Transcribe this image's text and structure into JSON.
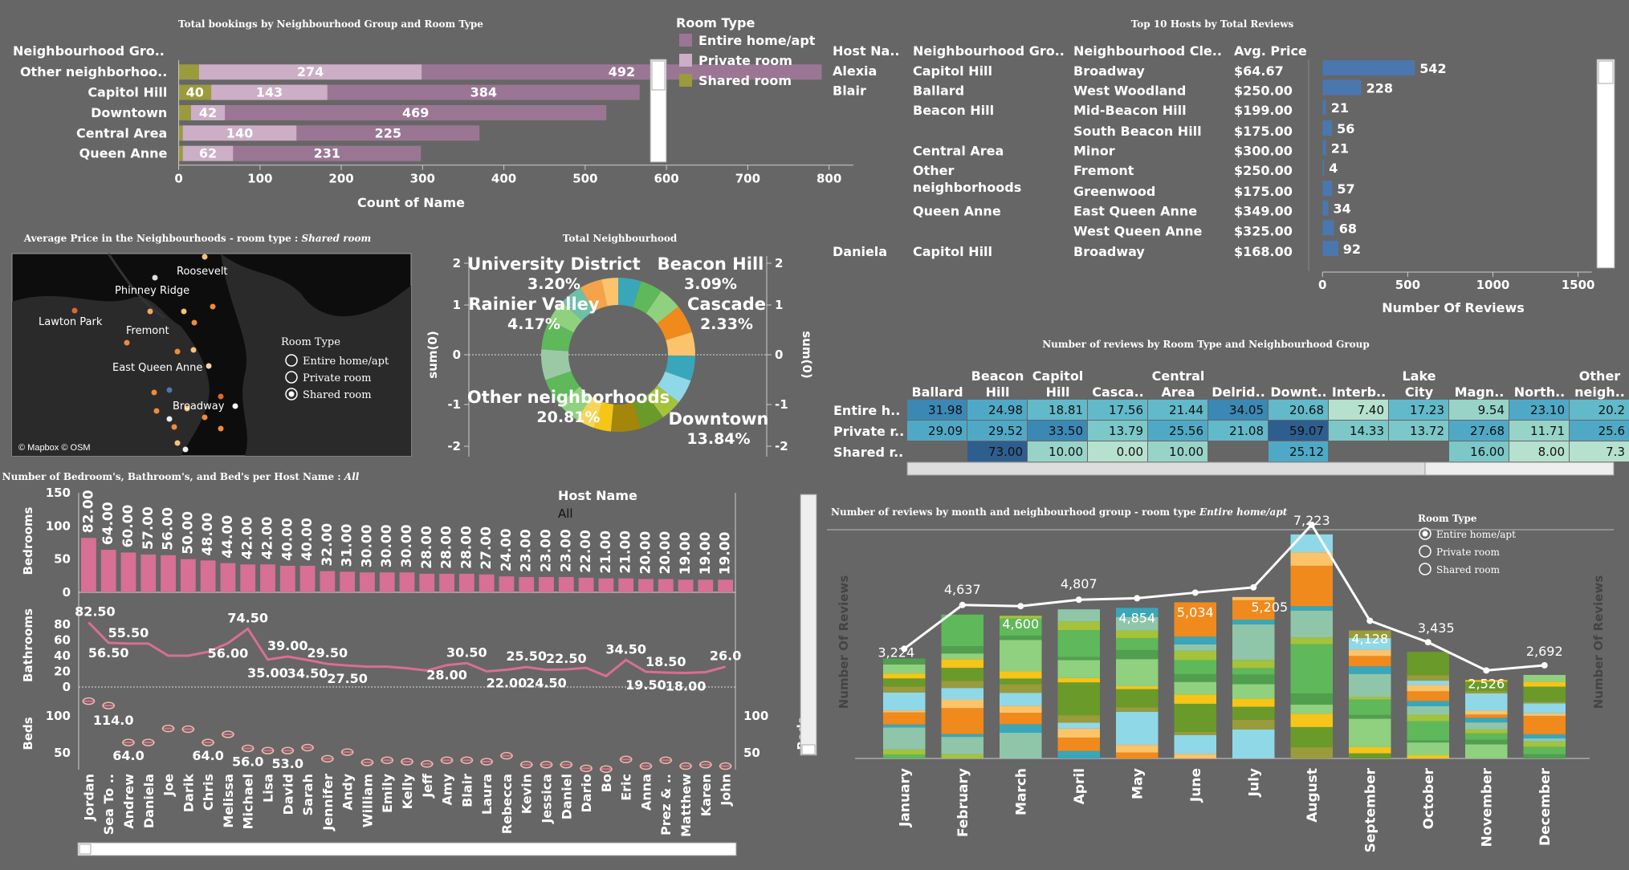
{
  "colors": {
    "entire": "#9b7694",
    "private": "#ccaec6",
    "shared": "#9a9b3a",
    "heatDark": "#2e5e8e",
    "bar": "#d86f94",
    "hostbar": "#4a77ad"
  },
  "bookings": {
    "title": "Total bookings by Neighbourhood Group and Room Type",
    "col_header": "Neighbourhood Gro..",
    "rows": [
      {
        "name": "Other neighborhoo..",
        "shared": 25,
        "private": 274,
        "entire": 492,
        "labels": [
          "",
          "274",
          "492"
        ]
      },
      {
        "name": "Capitol Hill",
        "shared": 40,
        "private": 143,
        "entire": 384,
        "labels": [
          "40",
          "143",
          "384"
        ]
      },
      {
        "name": "Downtown",
        "shared": 15,
        "private": 42,
        "entire": 469,
        "labels": [
          "",
          "42",
          "469"
        ]
      },
      {
        "name": "Central Area",
        "shared": 5,
        "private": 140,
        "entire": 225,
        "labels": [
          "",
          "140",
          "225"
        ]
      },
      {
        "name": "Queen Anne",
        "shared": 5,
        "private": 62,
        "entire": 231,
        "labels": [
          "",
          "62",
          "231"
        ]
      }
    ],
    "xticks": [
      "0",
      "100",
      "200",
      "300",
      "400",
      "500",
      "600",
      "700",
      "800"
    ],
    "xmax": 850,
    "xlabel": "Count of Name"
  },
  "legend_room": {
    "title": "Room Type",
    "items": [
      "Entire home/apt",
      "Private room",
      "Shared room"
    ]
  },
  "hosts": {
    "title": "Top 10 Hosts by Total Reviews",
    "headers": [
      "Host Na..",
      "Neighbourhood Gro..",
      "Neighbourhood Cle..",
      "Avg. Price"
    ],
    "rows": [
      {
        "host": "Alexia",
        "group": "Capitol Hill",
        "cleansed": "Broadway",
        "price": "$64.67",
        "reviews": 542
      },
      {
        "host": "Blair",
        "group": "Ballard",
        "cleansed": "West Woodland",
        "price": "$250.00",
        "reviews": 228
      },
      {
        "host": "",
        "group": "Beacon Hill",
        "cleansed": "Mid-Beacon Hill",
        "price": "$199.00",
        "reviews": 21
      },
      {
        "host": "",
        "group": "",
        "cleansed": "South Beacon Hill",
        "price": "$175.00",
        "reviews": 56
      },
      {
        "host": "",
        "group": "Central Area",
        "cleansed": "Minor",
        "price": "$300.00",
        "reviews": 21
      },
      {
        "host": "",
        "group": "Other neighborhoods",
        "cleansed": "Fremont",
        "price": "$250.00",
        "reviews": 4
      },
      {
        "host": "",
        "group": "",
        "cleansed": "Greenwood",
        "price": "$175.00",
        "reviews": 57
      },
      {
        "host": "",
        "group": "Queen Anne",
        "cleansed": "East Queen Anne",
        "price": "$349.00",
        "reviews": 34
      },
      {
        "host": "",
        "group": "",
        "cleansed": "West Queen Anne",
        "price": "$325.00",
        "reviews": 68
      },
      {
        "host": "Daniela",
        "group": "Capitol Hill",
        "cleansed": "Broadway",
        "price": "$168.00",
        "reviews": 92
      }
    ],
    "xticks": [
      "0",
      "500",
      "1000",
      "1500"
    ],
    "xlabel": "Number Of Reviews"
  },
  "map": {
    "title_prefix": "Average Price in the Neighbourhoods - room type : ",
    "title_value": "Shared room",
    "labels": [
      "Roosevelt",
      "Phinney Ridge",
      "Lawton Park",
      "Fremont",
      "East Queen Anne",
      "Broadway"
    ],
    "legend_title": "Room Type",
    "legend_items": [
      "Entire home/apt",
      "Private room",
      "Shared room"
    ],
    "selected": "Shared room",
    "attribution": "© Mapbox © OSM"
  },
  "donut": {
    "title": "Total Neighbourhood",
    "labels": [
      {
        "name": "University District",
        "pct": "3.20%"
      },
      {
        "name": "Beacon Hill",
        "pct": "3.09%"
      },
      {
        "name": "Rainier Valley",
        "pct": "4.17%"
      },
      {
        "name": "Cascade",
        "pct": "2.33%"
      },
      {
        "name": "Other neighborhoods",
        "pct": "20.81%"
      },
      {
        "name": "Downtown",
        "pct": "13.84%"
      }
    ],
    "axis_label": "sum(0)",
    "ticks": [
      "2",
      "1",
      "0",
      "-1",
      "-2"
    ]
  },
  "heatmap": {
    "title": "Number of reviews by Room Type and Neighbourhood Group",
    "cols": [
      "Ballard",
      "Beacon Hill",
      "Capitol Hill",
      "Casca..",
      "Central Area",
      "Delrid..",
      "Downt..",
      "Interb..",
      "Lake City",
      "Magn..",
      "North..",
      "Other neigh.."
    ],
    "rows": [
      "Entire h..",
      "Private r..",
      "Shared r.."
    ],
    "values": [
      [
        "31.98",
        "24.98",
        "18.81",
        "17.56",
        "21.44",
        "34.05",
        "20.68",
        "7.40",
        "17.23",
        "9.54",
        "23.10",
        "20.2"
      ],
      [
        "29.09",
        "29.52",
        "33.50",
        "13.79",
        "25.56",
        "21.08",
        "59.07",
        "14.33",
        "13.72",
        "27.68",
        "11.71",
        "25.6"
      ],
      [
        "",
        "73.00",
        "10.00",
        "0.00",
        "10.00",
        "",
        "25.12",
        "",
        "",
        "16.00",
        "8.00",
        "7.3"
      ]
    ]
  },
  "beds": {
    "title_prefix": "Number of Bedroom's, Bathroom's, and Bed's per Host Name : ",
    "title_value": "All",
    "hosts": [
      "Jordan",
      "Sea To ..",
      "Andrew",
      "Daniela",
      "Joe",
      "Darik",
      "Chris",
      "Melissa",
      "Michael",
      "Lisa",
      "David",
      "Sarah",
      "Jennifer",
      "Andy",
      "William",
      "Emily",
      "Kelly",
      "Jeff",
      "Amy",
      "Blair",
      "Laura",
      "Rebecca",
      "Kevin",
      "Jessica",
      "Daniel",
      "Dario",
      "Bo",
      "Eric",
      "Anna",
      "Prez & ..",
      "Matthew",
      "Karen",
      "John"
    ],
    "bedrooms": [
      82,
      64,
      60,
      57,
      56,
      50,
      48,
      44,
      42,
      42,
      40,
      40,
      32,
      31,
      30,
      30,
      30,
      28,
      28,
      28,
      27,
      24,
      23,
      23,
      23,
      22,
      21,
      21,
      20,
      20,
      19,
      19,
      19
    ],
    "bedroom_labels": [
      "82.00",
      "64.00",
      "60.00",
      "57.00",
      "56.00",
      "50.00",
      "48.00",
      "44.00",
      "42.00",
      "42.00",
      "40.00",
      "40.00",
      "32.00",
      "31.00",
      "30.00",
      "30.00",
      "30.00",
      "28.00",
      "28.00",
      "28.00",
      "27.00",
      "24.00",
      "23.00",
      "23.00",
      "23.00",
      "22.00",
      "21.00",
      "21.00",
      "20.00",
      "20.00",
      "19.00",
      "19.00",
      "19.00"
    ],
    "bathrooms": [
      82.5,
      56.5,
      55.5,
      55.5,
      40,
      40,
      45,
      56,
      74.5,
      35,
      39,
      34.5,
      29.5,
      27.5,
      26,
      26,
      24,
      21,
      28,
      30.5,
      20,
      22,
      25.5,
      22,
      22.5,
      24.5,
      14,
      34.5,
      19.5,
      18.5,
      18,
      19,
      26
    ],
    "bathroom_labels": [
      "82.50",
      "56.50",
      "55.50",
      "56.00",
      "74.50",
      "35.00",
      "39.00",
      "34.50",
      "29.50",
      "27.50",
      "28.00",
      "30.50",
      "25.50",
      "22.00",
      "24.50",
      "22.50",
      "34.50",
      "19.50",
      "18.50",
      "18.00",
      "26.0"
    ],
    "beds": [
      125,
      114,
      64,
      64,
      83,
      82,
      64,
      75,
      56,
      53,
      53,
      57,
      42,
      51,
      37,
      40,
      38,
      35,
      40,
      40,
      38,
      46,
      34,
      34,
      34,
      29,
      28,
      41,
      32,
      40,
      32,
      34,
      32
    ],
    "bed_labels": [
      "114.0",
      "64.0",
      "64.0",
      "56.0",
      "53.0"
    ],
    "ylabels": [
      "Bedrooms",
      "Bathrooms",
      "Beds"
    ],
    "bedroom_ticks": [
      "150",
      "100",
      "50",
      "0"
    ],
    "bath_ticks": [
      "80",
      "60",
      "40",
      "20",
      "0"
    ],
    "bed_ticks": [
      "100",
      "50"
    ],
    "bed_right_ticks": [
      "100",
      "50"
    ]
  },
  "host_filter": {
    "label": "Host Name",
    "value": "All"
  },
  "monthly": {
    "title_prefix": "Number of reviews by month and neighbourhood group - room type ",
    "title_value": "Entire home/apt",
    "months": [
      "January",
      "February",
      "March",
      "April",
      "May",
      "June",
      "July",
      "August",
      "September",
      "October",
      "November",
      "December"
    ],
    "totals": [
      3224,
      4637,
      4600,
      4807,
      4854,
      5034,
      5205,
      7223,
      4128,
      3435,
      2526,
      2692
    ],
    "total_labels": [
      "3,224",
      "4,637",
      "4,600",
      "4,807",
      "4,854",
      "5,034",
      "5,205",
      "7,223",
      "4,128",
      "3,435",
      "2,526",
      "2,692"
    ],
    "ylabel": "Number Of Reviews",
    "legend_title": "Room Type",
    "legend_items": [
      "Entire home/apt",
      "Private room",
      "Shared room"
    ],
    "selected": "Entire home/apt"
  }
}
